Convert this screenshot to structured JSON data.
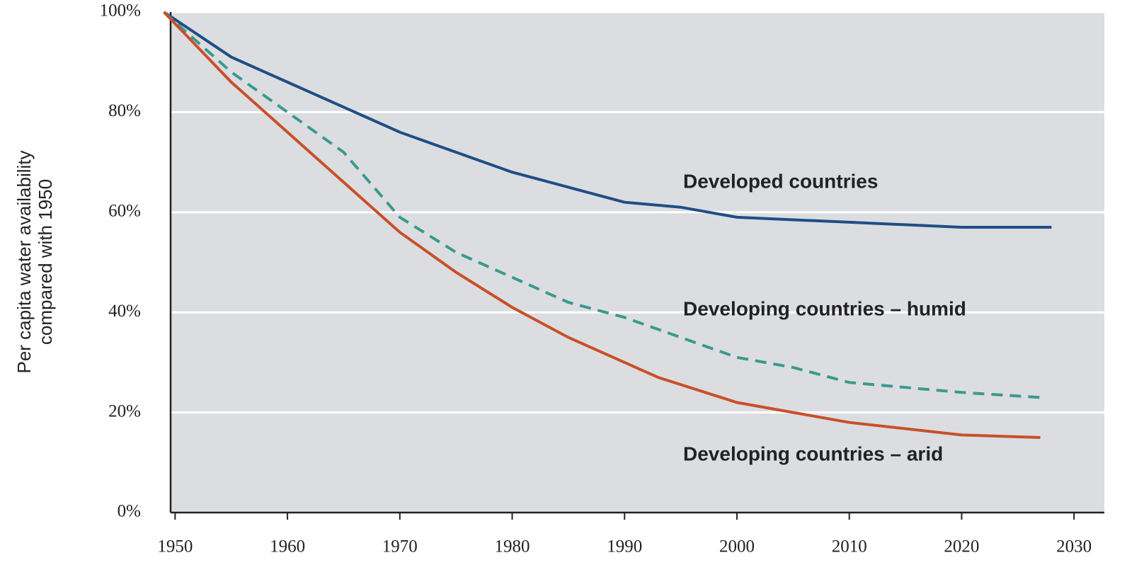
{
  "chart_data": {
    "type": "line",
    "y_label": [
      "Per capita water availability",
      "compared with 1950"
    ],
    "x_ticks_label_note": null,
    "xlim": [
      1949.6,
      2032.7
    ],
    "xticks": [
      1950,
      1960,
      1970,
      1980,
      1990,
      2000,
      2010,
      2020,
      2030
    ],
    "ylim": [
      0,
      100
    ],
    "yticks": [
      {
        "value": 0,
        "label": "0%"
      },
      {
        "value": 20,
        "label": "20%"
      },
      {
        "value": 40,
        "label": "40%"
      },
      {
        "value": 60,
        "label": "60%"
      },
      {
        "value": 80,
        "label": "80%"
      },
      {
        "value": 100,
        "label": "100%"
      }
    ],
    "grid": true,
    "series": [
      {
        "name": "Developed countries",
        "color": "#1f4e85",
        "linestyle": "solid",
        "x": [
          1949,
          1955,
          1960,
          1965,
          1970,
          1975,
          1980,
          1985,
          1990,
          1995,
          2000,
          2010,
          2020,
          2028
        ],
        "values": [
          100,
          91,
          86,
          81,
          76,
          72,
          68,
          65,
          62,
          61,
          59,
          58,
          57,
          57
        ]
      },
      {
        "name": "Developing countries – humid",
        "color": "#3a9a8e",
        "linestyle": "dashed",
        "x": [
          1949,
          1955,
          1960,
          1965,
          1970,
          1975,
          1980,
          1985,
          1990,
          1995,
          2000,
          2005,
          2010,
          2020,
          2027
        ],
        "values": [
          100,
          88,
          80,
          72,
          59,
          52,
          47,
          42,
          39,
          35,
          31,
          29,
          26,
          24,
          23
        ]
      },
      {
        "name": "Developing countries – arid",
        "color": "#c8502a",
        "linestyle": "solid",
        "x": [
          1949,
          1955,
          1960,
          1965,
          1970,
          1975,
          1980,
          1985,
          1990,
          1993,
          2000,
          2010,
          2020,
          2027
        ],
        "values": [
          100,
          86,
          76,
          66,
          56,
          48,
          41,
          35,
          30,
          27,
          22,
          18,
          15.5,
          15
        ]
      }
    ]
  }
}
